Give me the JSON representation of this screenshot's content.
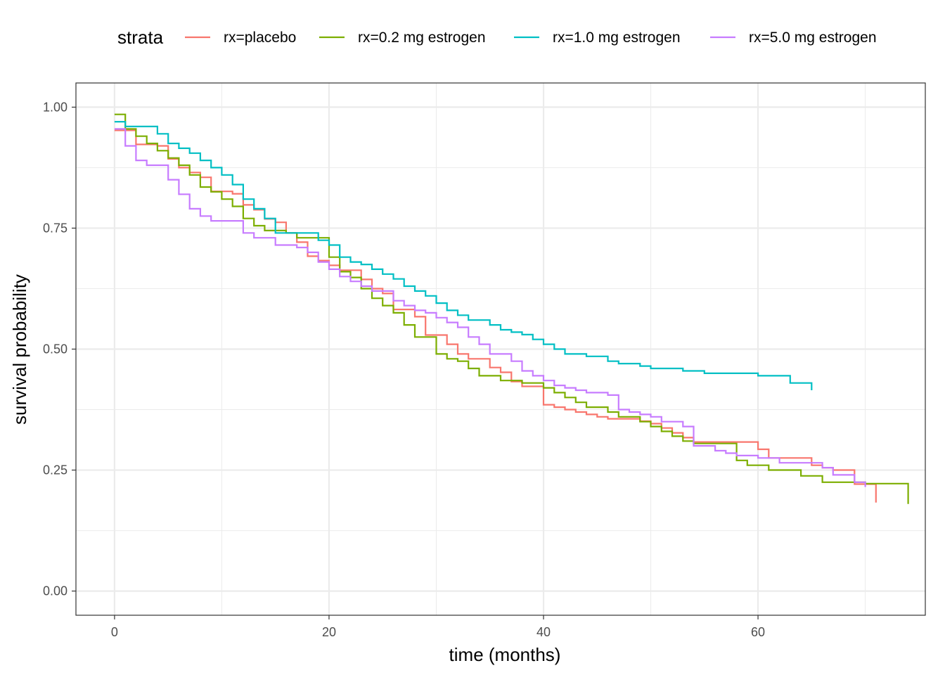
{
  "chart_data": {
    "type": "line",
    "step": true,
    "xlabel": "time (months)",
    "ylabel": "survival probability",
    "xlim": [
      -3.6,
      75.6
    ],
    "ylim": [
      -0.05,
      1.05
    ],
    "x_ticks": [
      0,
      20,
      40,
      60
    ],
    "x_tick_labels": [
      "0",
      "20",
      "40",
      "60"
    ],
    "y_ticks": [
      0,
      0.25,
      0.5,
      0.75,
      1.0
    ],
    "y_tick_labels": [
      "0.00",
      "0.25",
      "0.50",
      "0.75",
      "1.00"
    ],
    "grid": true,
    "legend": {
      "title": "strata",
      "placement": "top"
    },
    "series": [
      {
        "name": "rx=placebo",
        "color": "#F8766D",
        "x": [
          0,
          1,
          2,
          4,
          5,
          6,
          7,
          8,
          9,
          11,
          12,
          13,
          14,
          15,
          16,
          17,
          18,
          19,
          20,
          21,
          23,
          24,
          25,
          26,
          28,
          29,
          31,
          32,
          33,
          35,
          36,
          37,
          38,
          40,
          41,
          42,
          43,
          44,
          45,
          46,
          47,
          48,
          49,
          50,
          51,
          52,
          53,
          54,
          60,
          61,
          65,
          66,
          67,
          69,
          71
        ],
        "y": [
          0.952,
          0.952,
          0.923,
          0.92,
          0.893,
          0.875,
          0.865,
          0.855,
          0.826,
          0.821,
          0.798,
          0.788,
          0.769,
          0.762,
          0.74,
          0.721,
          0.692,
          0.683,
          0.673,
          0.663,
          0.644,
          0.625,
          0.615,
          0.582,
          0.567,
          0.529,
          0.51,
          0.49,
          0.48,
          0.462,
          0.452,
          0.433,
          0.423,
          0.385,
          0.38,
          0.375,
          0.37,
          0.365,
          0.36,
          0.356,
          0.356,
          0.356,
          0.351,
          0.346,
          0.337,
          0.327,
          0.317,
          0.308,
          0.293,
          0.275,
          0.26,
          0.255,
          0.25,
          0.221,
          0.183
        ]
      },
      {
        "name": "rx=0.2 mg estrogen",
        "color": "#7CAE00",
        "x": [
          0,
          1,
          2,
          3,
          4,
          5,
          6,
          7,
          8,
          9,
          10,
          11,
          12,
          13,
          14,
          16,
          17,
          18,
          20,
          21,
          22,
          23,
          24,
          25,
          26,
          27,
          28,
          30,
          31,
          32,
          33,
          34,
          36,
          38,
          40,
          41,
          42,
          43,
          44,
          46,
          47,
          49,
          50,
          51,
          52,
          53,
          54,
          55,
          58,
          59,
          61,
          64,
          66,
          70,
          74
        ],
        "y": [
          0.985,
          0.955,
          0.94,
          0.925,
          0.91,
          0.895,
          0.88,
          0.86,
          0.835,
          0.825,
          0.81,
          0.795,
          0.77,
          0.755,
          0.745,
          0.74,
          0.73,
          0.73,
          0.69,
          0.66,
          0.648,
          0.625,
          0.605,
          0.59,
          0.575,
          0.55,
          0.525,
          0.49,
          0.48,
          0.475,
          0.46,
          0.445,
          0.435,
          0.43,
          0.42,
          0.41,
          0.4,
          0.39,
          0.38,
          0.37,
          0.36,
          0.35,
          0.34,
          0.33,
          0.32,
          0.31,
          0.305,
          0.305,
          0.27,
          0.26,
          0.25,
          0.238,
          0.225,
          0.222,
          0.18
        ]
      },
      {
        "name": "rx=1.0 mg estrogen",
        "color": "#00BFC4",
        "x": [
          0,
          1,
          4,
          5,
          6,
          7,
          8,
          9,
          10,
          11,
          12,
          13,
          14,
          15,
          19,
          20,
          21,
          22,
          23,
          24,
          25,
          26,
          27,
          28,
          29,
          30,
          31,
          32,
          33,
          35,
          36,
          37,
          38,
          39,
          40,
          41,
          42,
          44,
          46,
          47,
          49,
          50,
          53,
          55,
          60,
          63,
          65
        ],
        "y": [
          0.97,
          0.96,
          0.945,
          0.925,
          0.915,
          0.905,
          0.89,
          0.875,
          0.86,
          0.84,
          0.81,
          0.79,
          0.77,
          0.74,
          0.725,
          0.715,
          0.69,
          0.68,
          0.675,
          0.665,
          0.655,
          0.645,
          0.63,
          0.62,
          0.61,
          0.595,
          0.58,
          0.57,
          0.56,
          0.55,
          0.54,
          0.535,
          0.53,
          0.52,
          0.51,
          0.5,
          0.49,
          0.485,
          0.475,
          0.47,
          0.465,
          0.46,
          0.455,
          0.45,
          0.445,
          0.43,
          0.415
        ]
      },
      {
        "name": "rx=5.0 mg estrogen",
        "color": "#C77CFF",
        "x": [
          0,
          1,
          2,
          3,
          5,
          6,
          7,
          8,
          9,
          12,
          13,
          15,
          17,
          18,
          19,
          20,
          21,
          22,
          23,
          24,
          26,
          27,
          28,
          29,
          30,
          31,
          32,
          33,
          34,
          35,
          37,
          38,
          39,
          40,
          41,
          42,
          43,
          44,
          46,
          47,
          48,
          49,
          50,
          51,
          53,
          54,
          56,
          57,
          58,
          60,
          62,
          66,
          67,
          69,
          70
        ],
        "y": [
          0.955,
          0.92,
          0.89,
          0.88,
          0.85,
          0.82,
          0.79,
          0.775,
          0.765,
          0.74,
          0.73,
          0.715,
          0.71,
          0.7,
          0.68,
          0.665,
          0.65,
          0.64,
          0.63,
          0.62,
          0.6,
          0.59,
          0.58,
          0.575,
          0.565,
          0.555,
          0.545,
          0.525,
          0.51,
          0.49,
          0.475,
          0.455,
          0.445,
          0.435,
          0.425,
          0.42,
          0.415,
          0.41,
          0.405,
          0.375,
          0.37,
          0.365,
          0.36,
          0.35,
          0.34,
          0.3,
          0.29,
          0.285,
          0.28,
          0.275,
          0.265,
          0.255,
          0.24,
          0.225,
          0.215
        ]
      }
    ]
  }
}
